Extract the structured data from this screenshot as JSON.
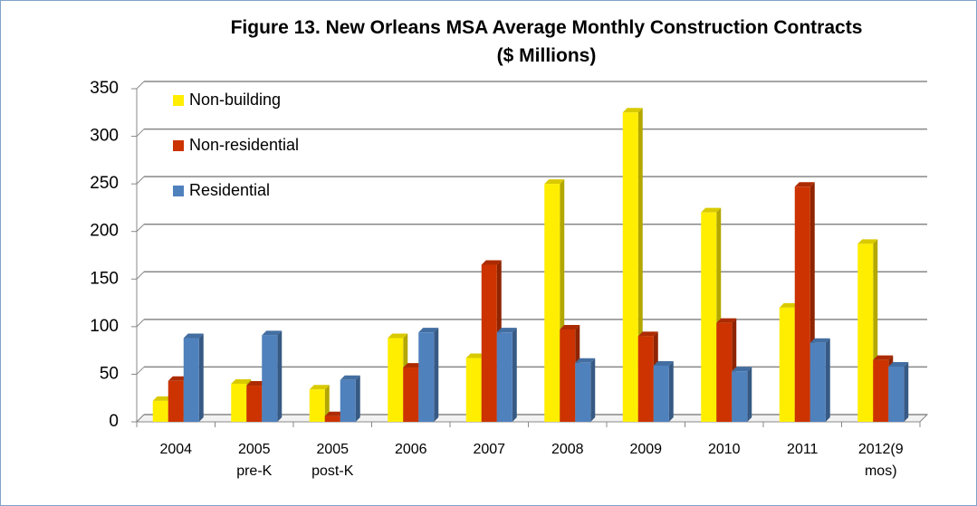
{
  "chart_data": {
    "type": "bar3d",
    "title": "Figure 13. New Orleans MSA Average Monthly Construction Contracts\n($ Millions)",
    "categories": [
      "2004",
      "2005\npre-K",
      "2005\npost-K",
      "2006",
      "2007",
      "2008",
      "2009",
      "2010",
      "2011",
      "2012(9\nmos)"
    ],
    "series": [
      {
        "name": "Non-building",
        "color": "#ffee00",
        "values": [
          22,
          40,
          34,
          88,
          67,
          250,
          325,
          220,
          120,
          187
        ]
      },
      {
        "name": "Non-residential",
        "color": "#cc3300",
        "values": [
          43,
          38,
          6,
          57,
          165,
          97,
          90,
          104,
          247,
          65
        ]
      },
      {
        "name": "Residential",
        "color": "#4f81bd",
        "values": [
          88,
          91,
          44,
          94,
          94,
          62,
          59,
          53,
          83,
          58
        ]
      }
    ],
    "ylim": [
      0,
      350
    ],
    "yticks": [
      0,
      50,
      100,
      150,
      200,
      250,
      300,
      350
    ],
    "grid": true,
    "legend": "top-left"
  }
}
